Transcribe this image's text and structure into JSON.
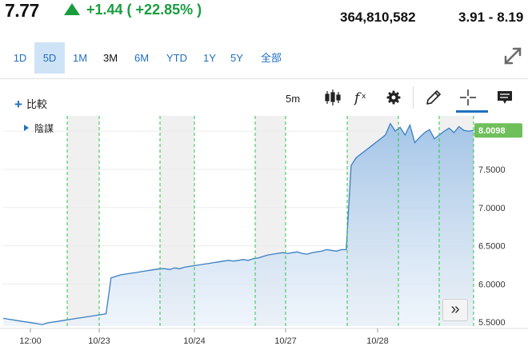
{
  "header": {
    "price": "7.77",
    "change": "+1.44 ( +22.85% )",
    "volume": "364,810,582",
    "range": "3.91 - 8.19",
    "up_color": "#1a9c3e"
  },
  "tabs": [
    {
      "label": "1D",
      "active": false
    },
    {
      "label": "5D",
      "active": true
    },
    {
      "label": "1M",
      "active": false
    },
    {
      "label": "3M",
      "active": false
    },
    {
      "label": "6M",
      "active": false
    },
    {
      "label": "YTD",
      "active": false
    },
    {
      "label": "1Y",
      "active": false
    },
    {
      "label": "5Y",
      "active": false
    },
    {
      "label": "全部",
      "active": false
    }
  ],
  "toolbar": {
    "compare_label": "比較",
    "interval": "5m",
    "icons": [
      "candlestick-icon",
      "fx-icon",
      "gear-icon",
      "pencil-icon",
      "crosshair-icon",
      "comment-icon"
    ]
  },
  "indicator_label": "陰謀",
  "scroll_button_label": "»",
  "chart_data": {
    "type": "area",
    "x_labels": [
      "12:00",
      "10/23",
      "10/24",
      "10/27",
      "10/28"
    ],
    "y_ticks": [
      "8.0000",
      "7.5000",
      "7.0000",
      "6.5000",
      "6.0000",
      "5.5000"
    ],
    "ylim": [
      5.45,
      8.2
    ],
    "last_value_label": "8.0098",
    "last_value": 8.0098,
    "series_color": "#3a7fc4",
    "session_boundary_color": "#2ec44a",
    "series": [
      {
        "values": [
          5.55,
          5.54,
          5.53,
          5.52,
          5.51,
          5.5,
          5.49,
          5.48,
          5.47,
          5.49,
          5.5,
          5.51,
          5.52,
          5.53,
          5.54,
          5.55,
          5.56,
          5.57,
          5.58,
          5.59,
          5.6,
          5.61,
          6.08,
          6.1,
          6.12,
          6.13,
          6.14,
          6.15,
          6.16,
          6.17,
          6.18,
          6.19,
          6.2,
          6.2,
          6.19,
          6.21,
          6.2,
          6.22,
          6.23,
          6.24,
          6.25,
          6.26,
          6.27,
          6.28,
          6.29,
          6.3,
          6.31,
          6.3,
          6.31,
          6.32,
          6.31,
          6.33,
          6.34,
          6.36,
          6.38,
          6.39,
          6.4,
          6.41,
          6.4,
          6.41,
          6.42,
          6.4,
          6.39,
          6.41,
          6.42,
          6.43,
          6.45,
          6.44,
          6.43,
          6.45,
          6.45,
          7.55,
          7.65,
          7.7,
          7.75,
          7.8,
          7.85,
          7.9,
          7.95,
          8.1,
          8.0,
          8.05,
          7.95,
          8.08,
          7.85,
          7.92,
          7.98,
          8.02,
          7.9,
          7.95,
          8.0,
          8.04,
          7.98,
          8.06,
          8.01,
          8.0,
          8.0098
        ]
      }
    ]
  }
}
